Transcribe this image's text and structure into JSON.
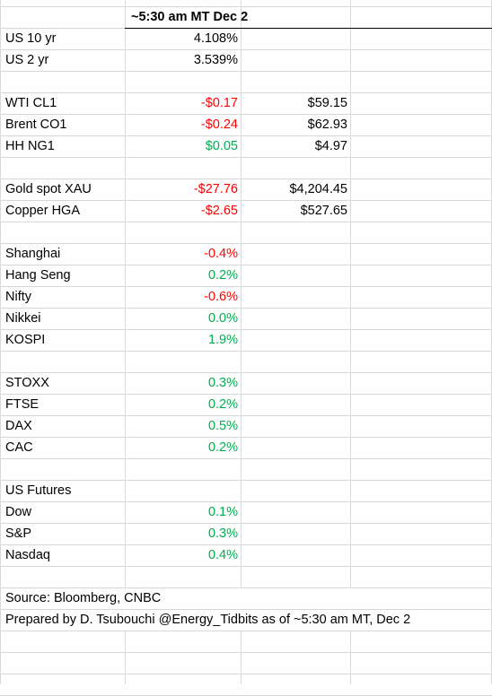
{
  "header": {
    "title": "~5:30 am MT Dec 2"
  },
  "rates": [
    {
      "label": "US 10 yr",
      "change": "4.108%",
      "change_color": "black",
      "level": ""
    },
    {
      "label": "US 2 yr",
      "change": "3.539%",
      "change_color": "black",
      "level": ""
    }
  ],
  "energy": [
    {
      "label": "WTI  CL1",
      "change": "-$0.17",
      "change_color": "#ff0000",
      "level": "$59.15"
    },
    {
      "label": "Brent  CO1",
      "change": "-$0.24",
      "change_color": "#ff0000",
      "level": "$62.93"
    },
    {
      "label": "HH  NG1",
      "change": "$0.05",
      "change_color": "#00b050",
      "level": "$4.97"
    }
  ],
  "metals": [
    {
      "label": "Gold spot XAU",
      "change": "-$27.76",
      "change_color": "#ff0000",
      "level": "$4,204.45"
    },
    {
      "label": "Copper HGA",
      "change": "-$2.65",
      "change_color": "#ff0000",
      "level": "$527.65"
    }
  ],
  "asia": [
    {
      "label": "Shanghai",
      "change": "-0.4%",
      "change_color": "#ff0000"
    },
    {
      "label": "Hang Seng",
      "change": "0.2%",
      "change_color": "#00b050"
    },
    {
      "label": "Nifty",
      "change": "-0.6%",
      "change_color": "#ff0000"
    },
    {
      "label": "Nikkei",
      "change": "0.0%",
      "change_color": "#00b050"
    },
    {
      "label": "KOSPI",
      "change": "1.9%",
      "change_color": "#00b050"
    }
  ],
  "europe": [
    {
      "label": "STOXX",
      "change": "0.3%",
      "change_color": "#00b050"
    },
    {
      "label": "FTSE",
      "change": "0.2%",
      "change_color": "#00b050"
    },
    {
      "label": "DAX",
      "change": "0.5%",
      "change_color": "#00b050"
    },
    {
      "label": "CAC",
      "change": "0.2%",
      "change_color": "#00b050"
    }
  ],
  "us_futures": {
    "heading": "US Futures",
    "rows": [
      {
        "label": "Dow",
        "change": "0.1%",
        "change_color": "#00b050"
      },
      {
        "label": "S&P",
        "change": "0.3%",
        "change_color": "#00b050"
      },
      {
        "label": "Nasdaq",
        "change": "0.4%",
        "change_color": "#00b050"
      }
    ]
  },
  "footer": {
    "source": "Source: Bloomberg, CNBC",
    "prepared_by": "Prepared by D. Tsubouchi @Energy_Tidbits  as of ~5:30 am MT, Dec 2"
  }
}
